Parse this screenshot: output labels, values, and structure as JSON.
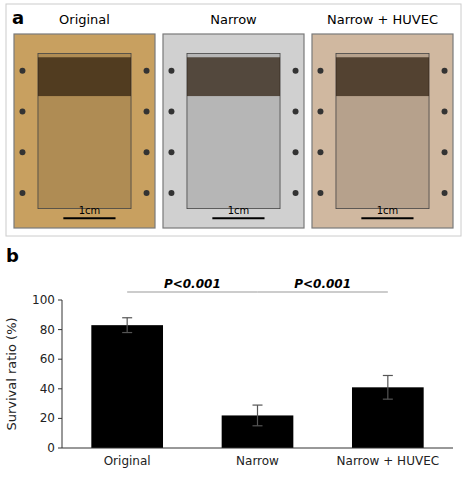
{
  "chart_data": [
    {
      "type": "image",
      "title": "a",
      "categories": [
        "Original",
        "Narrow",
        "Narrow + HUVEC"
      ],
      "colors": [
        "#c8a060",
        "#d0d0d0",
        "#d0b8a0"
      ],
      "annotations": [
        "1cm",
        "1cm",
        "1cm"
      ]
    },
    {
      "type": "bar",
      "title": "b",
      "categories": [
        "Original",
        "Narrow",
        "Narrow + HUVEC"
      ],
      "values": [
        83,
        22,
        41
      ],
      "errors": [
        5,
        7,
        8
      ],
      "colors": [
        "#000000",
        "#000000",
        "#000000"
      ],
      "ylabel": "Survival ratio (%)",
      "ylim": [
        0,
        100
      ],
      "yticks": [
        0,
        20,
        40,
        60,
        80,
        100
      ],
      "annotations": [
        "P<0.001",
        "P<0.001"
      ],
      "grid": false
    }
  ]
}
